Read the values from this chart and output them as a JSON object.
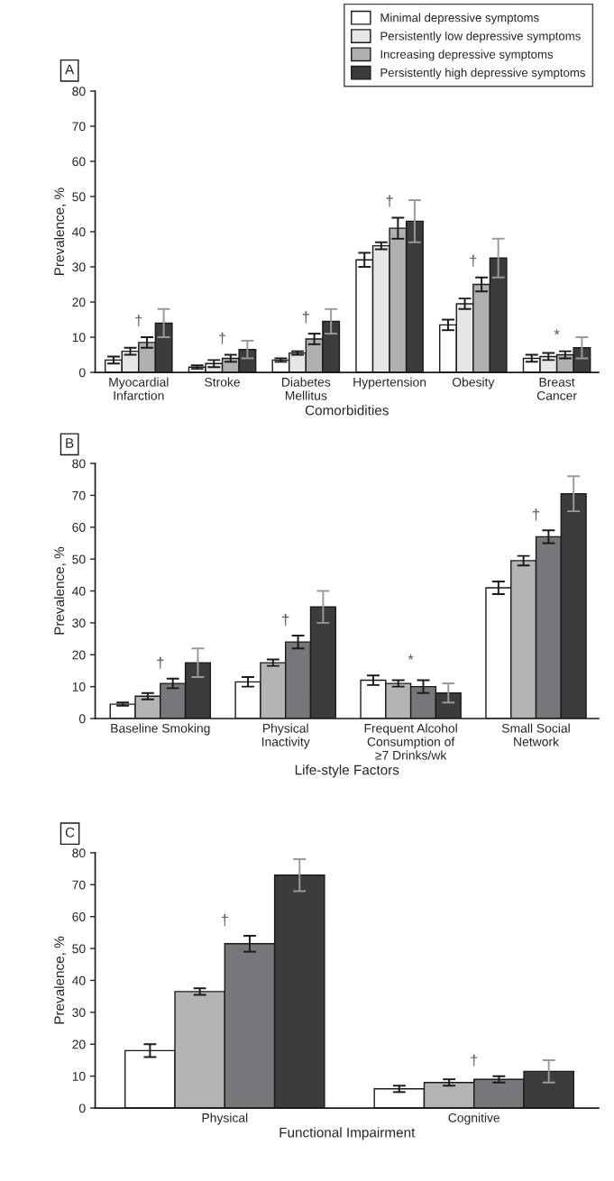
{
  "chart_data": [
    {
      "type": "bar",
      "title": "A",
      "xlabel": "Comorbidities",
      "ylabel": "Prevalence, %",
      "categories": [
        "Myocardial\nInfarction",
        "Stroke",
        "Diabetes\nMellitus",
        "Hypertension",
        "Obesity",
        "Breast\nCancer"
      ],
      "series": [
        {
          "name": "Minimal depressive symptoms",
          "color": "#ffffff",
          "values": [
            3.5,
            1.5,
            3.5,
            32,
            13.5,
            4
          ],
          "errors": [
            1,
            0.5,
            0.5,
            2,
            1.5,
            1
          ]
        },
        {
          "name": "Persistently low depressive symptoms",
          "color": "#e6e6e6",
          "values": [
            6,
            2.5,
            5.5,
            36,
            19.5,
            4.5
          ],
          "errors": [
            1,
            1,
            0.5,
            1,
            1.5,
            1
          ]
        },
        {
          "name": "Increasing depressive symptoms",
          "color": "#b0b0b0",
          "values": [
            8.5,
            4,
            9.5,
            41,
            25,
            5
          ],
          "errors": [
            1.5,
            1,
            1.5,
            3,
            2,
            1
          ]
        },
        {
          "name": "Persistently high depressive symptoms",
          "color": "#3c3c3c",
          "values": [
            14,
            6.5,
            14.5,
            43,
            32.5,
            7
          ],
          "errors": [
            4,
            2.5,
            3.5,
            6,
            5.5,
            3
          ]
        }
      ],
      "annotations": [
        "†",
        "†",
        "†",
        "†",
        "†",
        "*"
      ],
      "ylim": [
        0,
        80
      ],
      "yticks": [
        0,
        10,
        20,
        30,
        40,
        50,
        60,
        70,
        80
      ],
      "legend": "top right",
      "grid": false
    },
    {
      "type": "bar",
      "title": "B",
      "xlabel": "Life-style Factors",
      "ylabel": "Prevalence, %",
      "categories": [
        "Baseline Smoking",
        "Physical\nInactivity",
        "Frequent Alcohol\nConsumption of\n≥7 Drinks/wk",
        "Small Social\nNetwork"
      ],
      "series": [
        {
          "color": "#ffffff",
          "values": [
            4.5,
            11.5,
            12,
            41
          ],
          "errors": [
            0.5,
            1.5,
            1.5,
            2
          ]
        },
        {
          "color": "#b4b4b4",
          "values": [
            7,
            17.5,
            11,
            49.5
          ],
          "errors": [
            1,
            1,
            1,
            1.5
          ]
        },
        {
          "color": "#76777a",
          "values": [
            11,
            24,
            10,
            57
          ],
          "errors": [
            1.5,
            2,
            2,
            2
          ]
        },
        {
          "color": "#3c3c3c",
          "values": [
            17.5,
            35,
            8,
            70.5
          ],
          "errors": [
            4.5,
            5,
            3,
            5.5
          ]
        }
      ],
      "annotations": [
        "†",
        "†",
        "*",
        "†"
      ],
      "ylim": [
        0,
        80
      ],
      "yticks": [
        0,
        10,
        20,
        30,
        40,
        50,
        60,
        70,
        80
      ],
      "grid": false
    },
    {
      "type": "bar",
      "title": "C",
      "xlabel": "Functional Impairment",
      "ylabel": "Prevalence, %",
      "categories": [
        "Physical",
        "Cognitive"
      ],
      "series": [
        {
          "color": "#ffffff",
          "values": [
            18,
            6
          ],
          "errors": [
            2,
            1
          ]
        },
        {
          "color": "#b4b4b4",
          "values": [
            36.5,
            8
          ],
          "errors": [
            1,
            1
          ]
        },
        {
          "color": "#76777a",
          "values": [
            51.5,
            9
          ],
          "errors": [
            2.5,
            1
          ]
        },
        {
          "color": "#3c3c3c",
          "values": [
            73,
            11.5
          ],
          "errors": [
            5,
            3.5
          ]
        }
      ],
      "annotations": [
        "†",
        "†"
      ],
      "ylim": [
        0,
        80
      ],
      "yticks": [
        0,
        10,
        20,
        30,
        40,
        50,
        60,
        70,
        80
      ],
      "grid": false
    }
  ]
}
